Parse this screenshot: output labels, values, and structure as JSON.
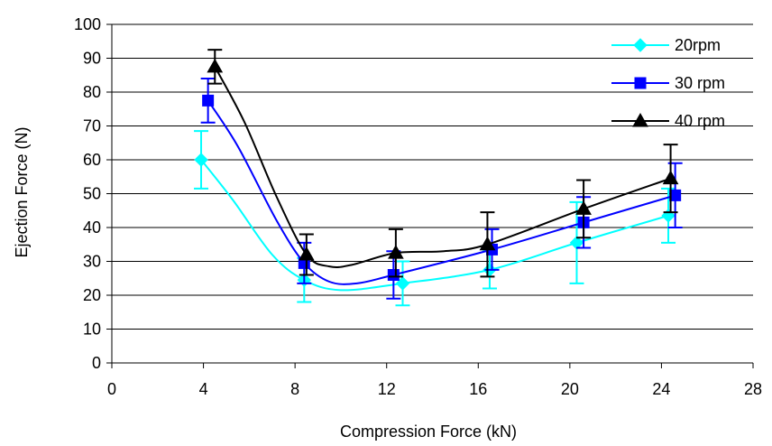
{
  "chart_data": {
    "type": "line",
    "xlabel": "Compression Force (kN)",
    "ylabel": "Ejection Force (N)",
    "xlim": [
      0,
      28
    ],
    "ylim": [
      0,
      100
    ],
    "xticks": [
      "0",
      "4",
      "8",
      "12",
      "16",
      "20",
      "24",
      "28"
    ],
    "yticks": [
      "0",
      "10",
      "20",
      "30",
      "40",
      "50",
      "60",
      "70",
      "80",
      "90",
      "100"
    ],
    "grid": "horizontal",
    "legend_position": "top-right",
    "series": [
      {
        "name": "20rpm",
        "color": "#00FFFF",
        "marker": "diamond",
        "x": [
          3.9,
          8.4,
          12.7,
          16.5,
          20.3,
          24.3
        ],
        "y": [
          60,
          24.5,
          23.5,
          27.5,
          35.5,
          43.5
        ],
        "err": [
          8.5,
          6.5,
          6.5,
          5.5,
          12,
          8
        ],
        "curve": [
          [
            3.9,
            60
          ],
          [
            5.3,
            48
          ],
          [
            7.0,
            32
          ],
          [
            8.4,
            24.5
          ],
          [
            10.0,
            21.5
          ],
          [
            12.7,
            23.5
          ],
          [
            16.5,
            27.5
          ],
          [
            20.3,
            35.5
          ],
          [
            24.3,
            43.5
          ]
        ]
      },
      {
        "name": "30 rpm",
        "color": "#0000FF",
        "marker": "square",
        "x": [
          4.2,
          8.4,
          12.3,
          16.6,
          20.6,
          24.6
        ],
        "y": [
          77.5,
          29.5,
          26,
          33.5,
          41.5,
          49.5
        ],
        "err": [
          6.5,
          6,
          7,
          6,
          7.5,
          9.5
        ],
        "curve": [
          [
            4.2,
            77.5
          ],
          [
            5.5,
            64
          ],
          [
            7.2,
            42
          ],
          [
            8.4,
            29.5
          ],
          [
            9.5,
            24
          ],
          [
            10.7,
            23.5
          ],
          [
            12.3,
            26
          ],
          [
            16.6,
            33.5
          ],
          [
            20.6,
            41.5
          ],
          [
            24.6,
            49.5
          ]
        ]
      },
      {
        "name": "40 rpm",
        "color": "#000000",
        "marker": "triangle",
        "x": [
          4.5,
          8.5,
          12.4,
          16.4,
          20.6,
          24.4
        ],
        "y": [
          87.5,
          32,
          32.5,
          35,
          45.5,
          54.5
        ],
        "err": [
          5,
          6,
          7,
          9.5,
          8.5,
          10
        ],
        "curve": [
          [
            4.5,
            87.5
          ],
          [
            5.8,
            71
          ],
          [
            7.2,
            49
          ],
          [
            8.5,
            32
          ],
          [
            9.5,
            28.5
          ],
          [
            10.5,
            29
          ],
          [
            12.4,
            32.5
          ],
          [
            14.5,
            33
          ],
          [
            16.4,
            35
          ],
          [
            20.6,
            45.5
          ],
          [
            24.4,
            54.5
          ]
        ]
      }
    ]
  }
}
